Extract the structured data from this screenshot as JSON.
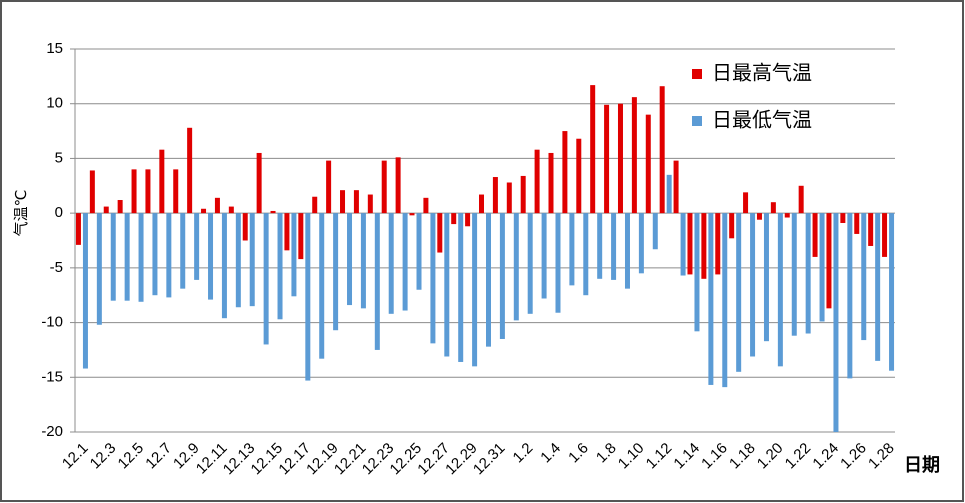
{
  "chart_data": {
    "type": "bar",
    "ylabel": "气温℃",
    "xlabel": "日期",
    "categories": [
      "12.1",
      null,
      "12.3",
      null,
      "12.5",
      null,
      "12.7",
      null,
      "12.9",
      null,
      "12.11",
      null,
      "12.13",
      null,
      "12.15",
      null,
      "12.17",
      null,
      "12.19",
      null,
      "12.21",
      null,
      "12.23",
      null,
      "12.25",
      null,
      "12.27",
      null,
      "12.29",
      null,
      "12.31",
      null,
      "1.2",
      null,
      "1.4",
      null,
      "1.6",
      null,
      "1.8",
      null,
      "1.10",
      null,
      "1.12",
      null,
      "1.14",
      null,
      "1.16",
      null,
      "1.18",
      null,
      "1.20",
      null,
      "1.22",
      null,
      "1.24",
      null,
      "1.26",
      null,
      "1.28"
    ],
    "series": [
      {
        "name": "日最高气温",
        "color": "#e00000",
        "values": [
          -2.9,
          3.9,
          0.6,
          1.2,
          4.0,
          4.0,
          5.8,
          4.0,
          7.8,
          0.4,
          1.4,
          0.6,
          -2.5,
          5.5,
          0.2,
          -3.4,
          -4.2,
          1.5,
          4.8,
          2.1,
          2.1,
          1.7,
          4.8,
          5.1,
          -0.2,
          1.4,
          -3.6,
          -1.0,
          -1.2,
          1.7,
          3.3,
          2.8,
          3.4,
          5.8,
          5.5,
          7.5,
          6.8,
          11.7,
          9.9,
          10.0,
          10.6,
          9.0,
          11.6,
          4.8,
          -5.6,
          -6.0,
          -5.6,
          -2.3,
          1.9,
          -0.6,
          1.0,
          -0.4,
          2.5,
          -4.0,
          -8.7,
          -0.9,
          -1.9,
          -3.0,
          -4.0
        ]
      },
      {
        "name": "日最低气温",
        "color": "#5b9bd5",
        "values": [
          -14.2,
          -10.2,
          -8.0,
          -8.0,
          -8.1,
          -7.5,
          -7.7,
          -6.9,
          -6.1,
          -7.9,
          -9.6,
          -8.6,
          -8.5,
          -12.0,
          -9.7,
          -7.6,
          -15.3,
          -13.3,
          -10.7,
          -8.4,
          -8.7,
          -12.5,
          -9.2,
          -8.9,
          -7.0,
          -11.9,
          -13.1,
          -13.6,
          -14.0,
          -12.2,
          -11.5,
          -9.8,
          -9.2,
          -7.8,
          -9.1,
          -6.6,
          -7.5,
          -6.0,
          -6.1,
          -6.9,
          -5.5,
          -3.3,
          3.5,
          -5.7,
          -10.8,
          -15.7,
          -15.9,
          -14.5,
          -13.1,
          -11.7,
          -14.0,
          -11.2,
          -11.0,
          -9.9,
          -20.0,
          -15.1,
          -11.6,
          -13.5,
          -14.4
        ]
      }
    ],
    "ylim": [
      -20,
      15
    ],
    "yticks": [
      -20,
      -15,
      -10,
      -5,
      0,
      5,
      10,
      15
    ],
    "grid": true,
    "legend": "upper-right"
  }
}
